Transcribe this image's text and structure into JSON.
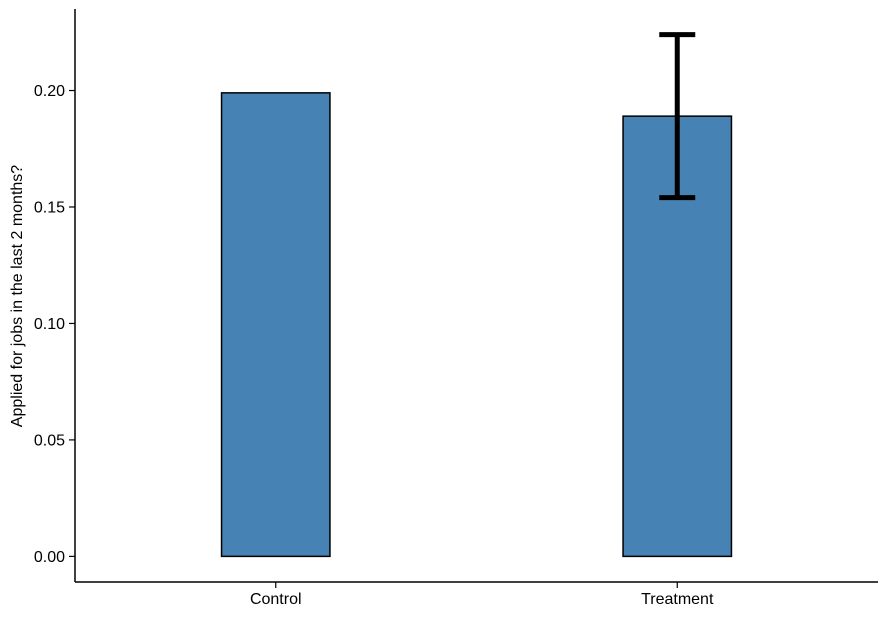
{
  "chart_data": {
    "type": "bar",
    "title": "",
    "xlabel": "",
    "ylabel": "Applied for jobs in the last 2 months?",
    "categories": [
      "Control",
      "Treatment"
    ],
    "values": [
      0.199,
      0.189
    ],
    "error_bars": [
      null,
      {
        "low": 0.154,
        "high": 0.224
      }
    ],
    "ylim": [
      -0.011,
      0.235
    ],
    "y_ticks": [
      0.0,
      0.05,
      0.1,
      0.15,
      0.2
    ],
    "y_tick_labels": [
      "0.00",
      "0.05",
      "0.10",
      "0.15",
      "0.20"
    ],
    "grid": false,
    "legend": "none",
    "bar_color": "#4682B4",
    "bar_outline_color": "#000000",
    "error_bar_color": "#000000"
  }
}
